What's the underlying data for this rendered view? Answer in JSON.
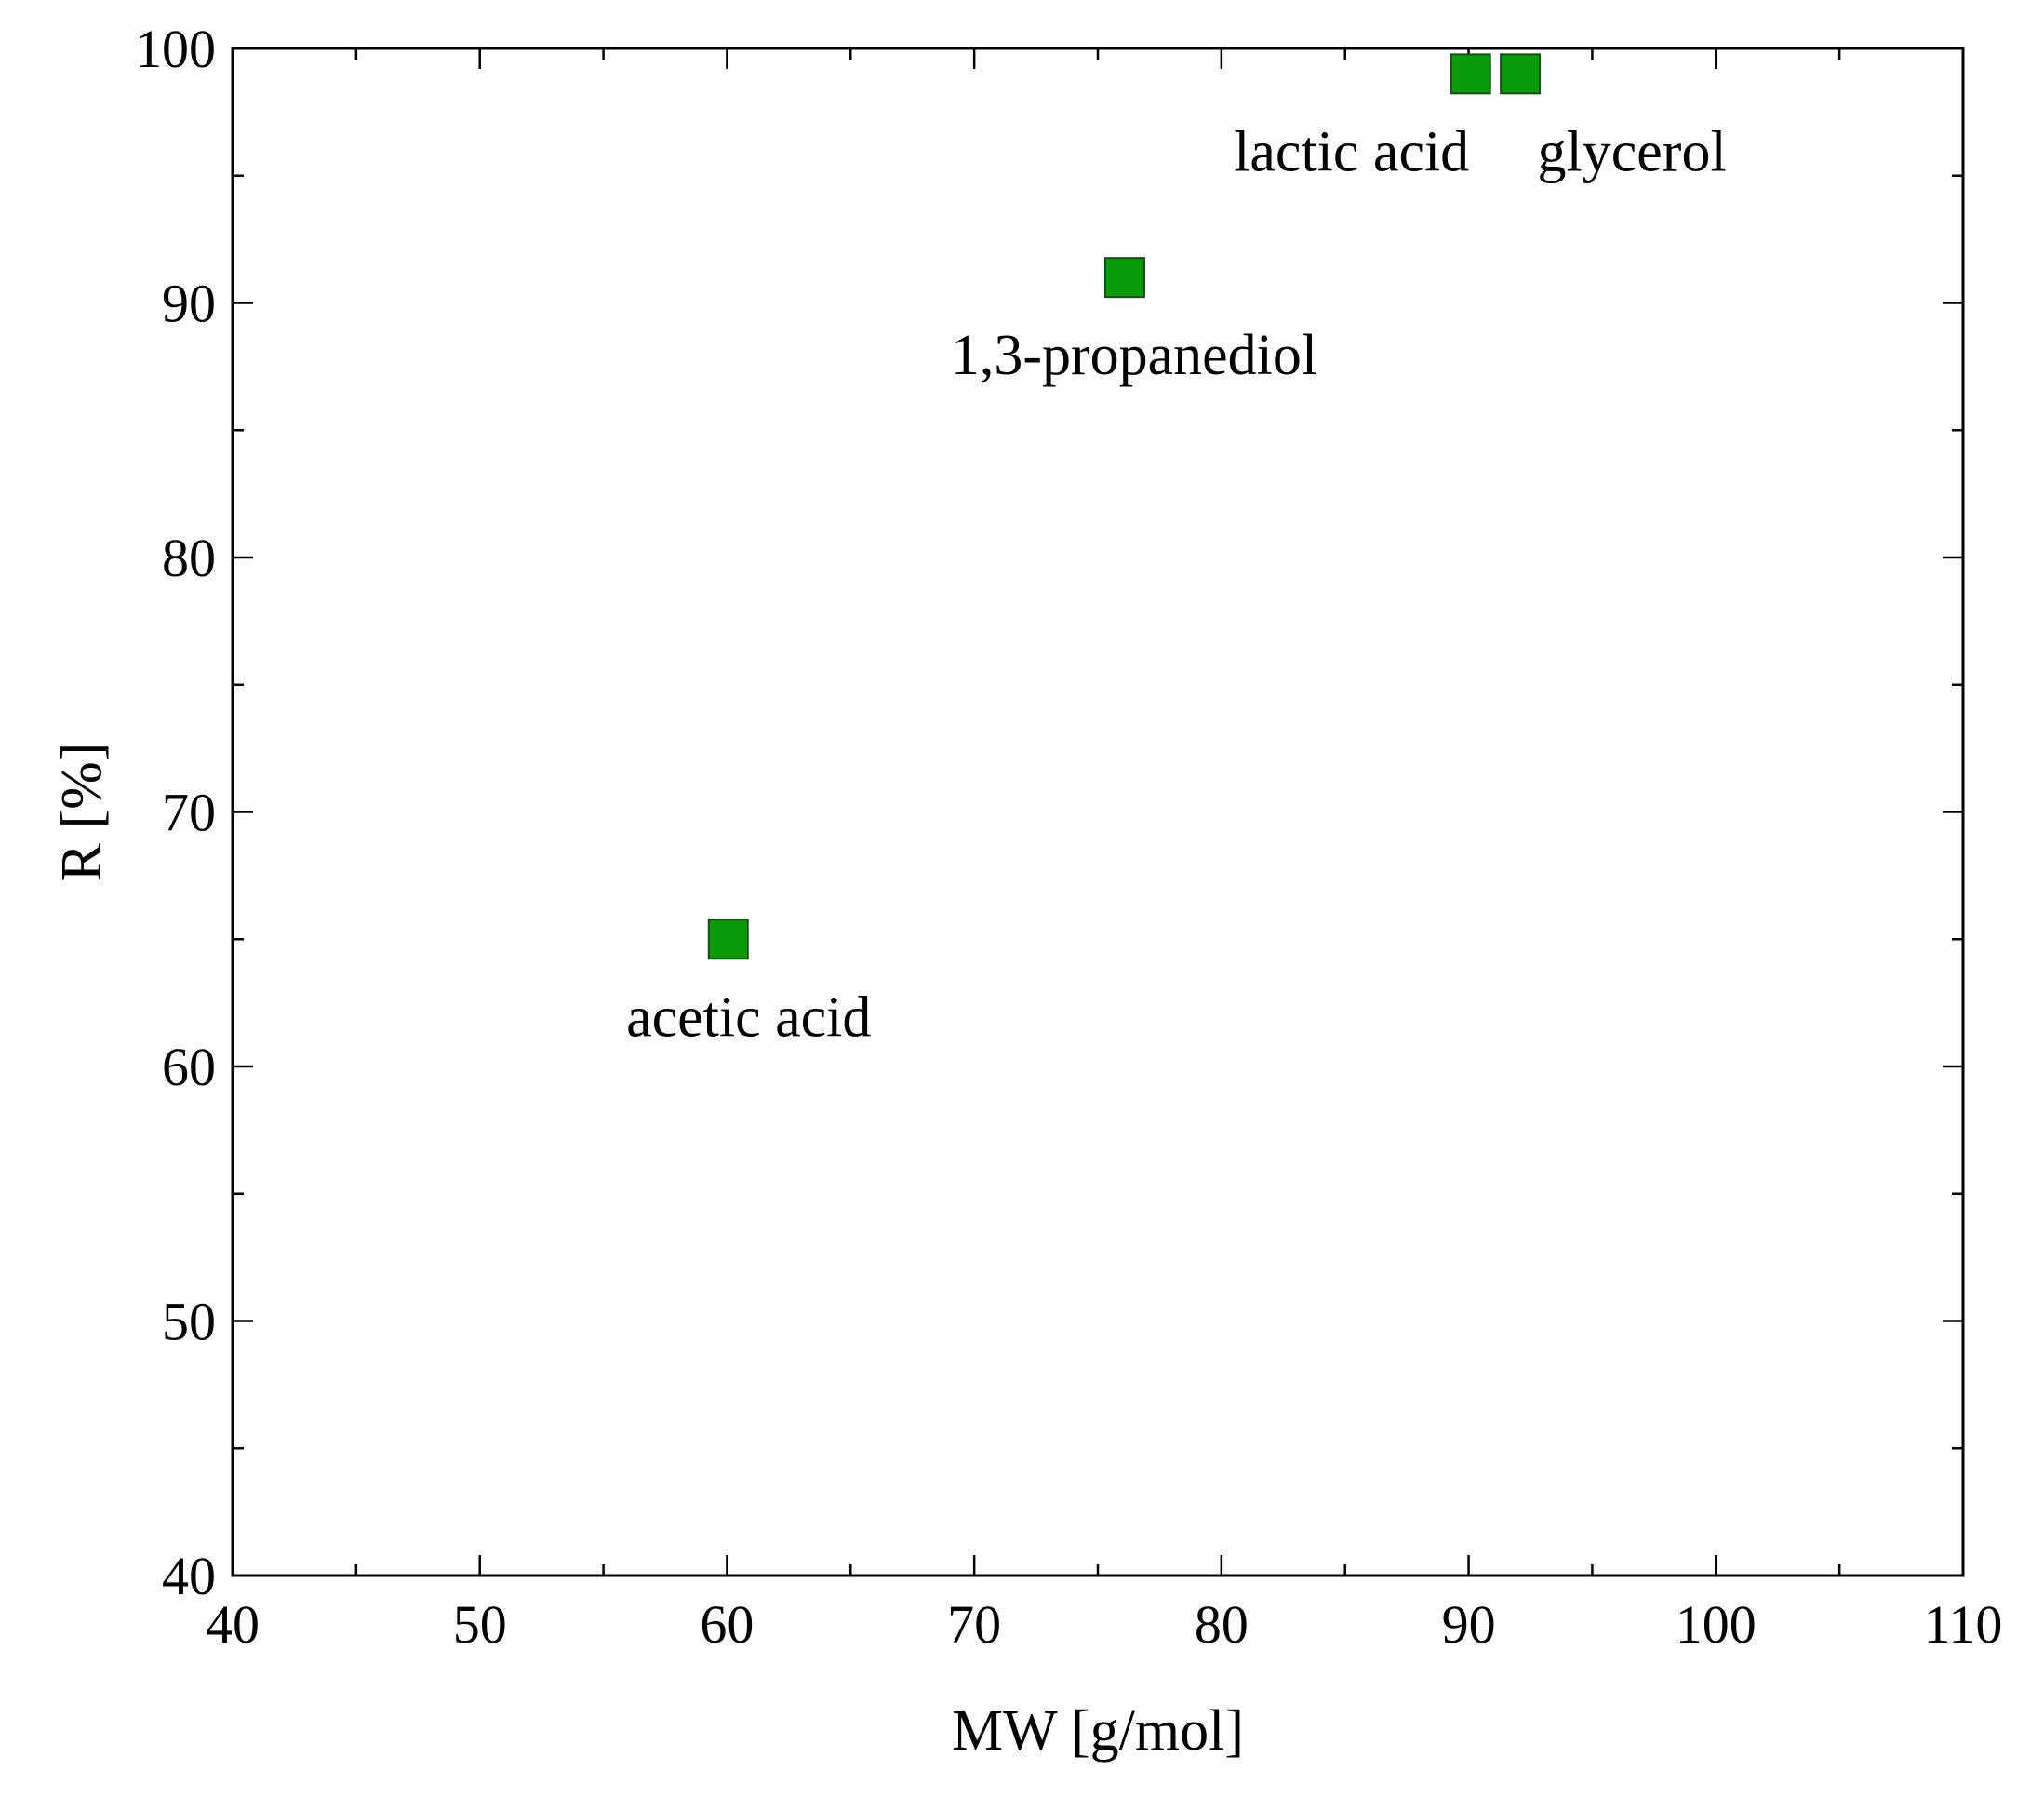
{
  "chart_data": {
    "type": "scatter",
    "xlabel": "MW [g/mol]",
    "ylabel": "R [%]",
    "xlim": [
      40,
      110
    ],
    "ylim": [
      40,
      100
    ],
    "x_ticks": [
      40,
      50,
      60,
      70,
      80,
      90,
      100,
      110
    ],
    "y_ticks": [
      40,
      50,
      60,
      70,
      80,
      90,
      100
    ],
    "x_minor_step": 5,
    "y_minor_step": 5,
    "grid": false,
    "marker": "square",
    "marker_color": "#0a9a0a",
    "points": [
      {
        "label": "acetic acid",
        "x": 60.05,
        "y": 65
      },
      {
        "label": "1,3-propanediol",
        "x": 76.09,
        "y": 91
      },
      {
        "label": "lactic acid",
        "x": 90.08,
        "y": 99
      },
      {
        "label": "glycerol",
        "x": 92.09,
        "y": 99
      }
    ]
  }
}
